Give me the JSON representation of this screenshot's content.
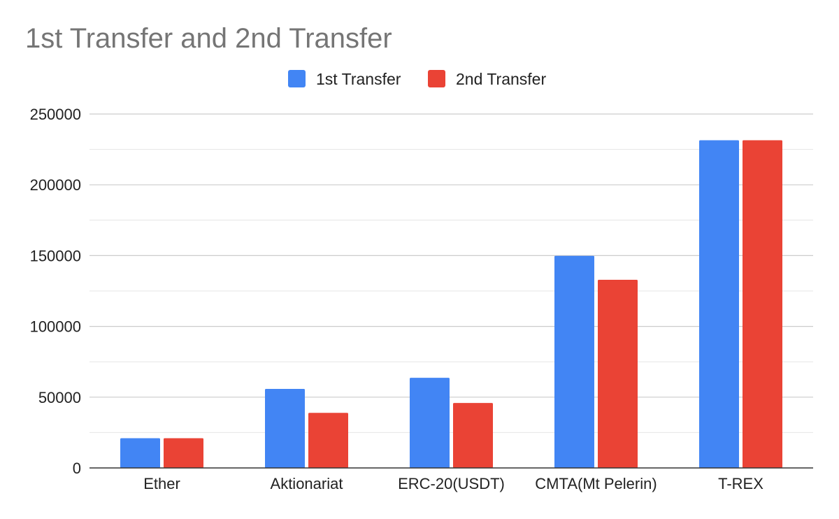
{
  "chart_data": {
    "type": "bar",
    "title": "1st Transfer and 2nd Transfer",
    "xlabel": "",
    "ylabel": "",
    "categories": [
      "Ether",
      "Aktionariat",
      "ERC-20(USDT)",
      "CMTA(Mt Pelerin)",
      "T-REX"
    ],
    "series": [
      {
        "name": "1st Transfer",
        "color": "#4285F4",
        "values": [
          21000,
          55800,
          63700,
          149800,
          231500
        ]
      },
      {
        "name": "2nd Transfer",
        "color": "#EA4335",
        "values": [
          21000,
          38900,
          45900,
          132900,
          231500
        ]
      }
    ],
    "ylim": [
      0,
      250000
    ],
    "yticks": [
      "0",
      "50000",
      "100000",
      "150000",
      "200000",
      "250000"
    ],
    "grid": true,
    "legend_position": "top-center"
  }
}
